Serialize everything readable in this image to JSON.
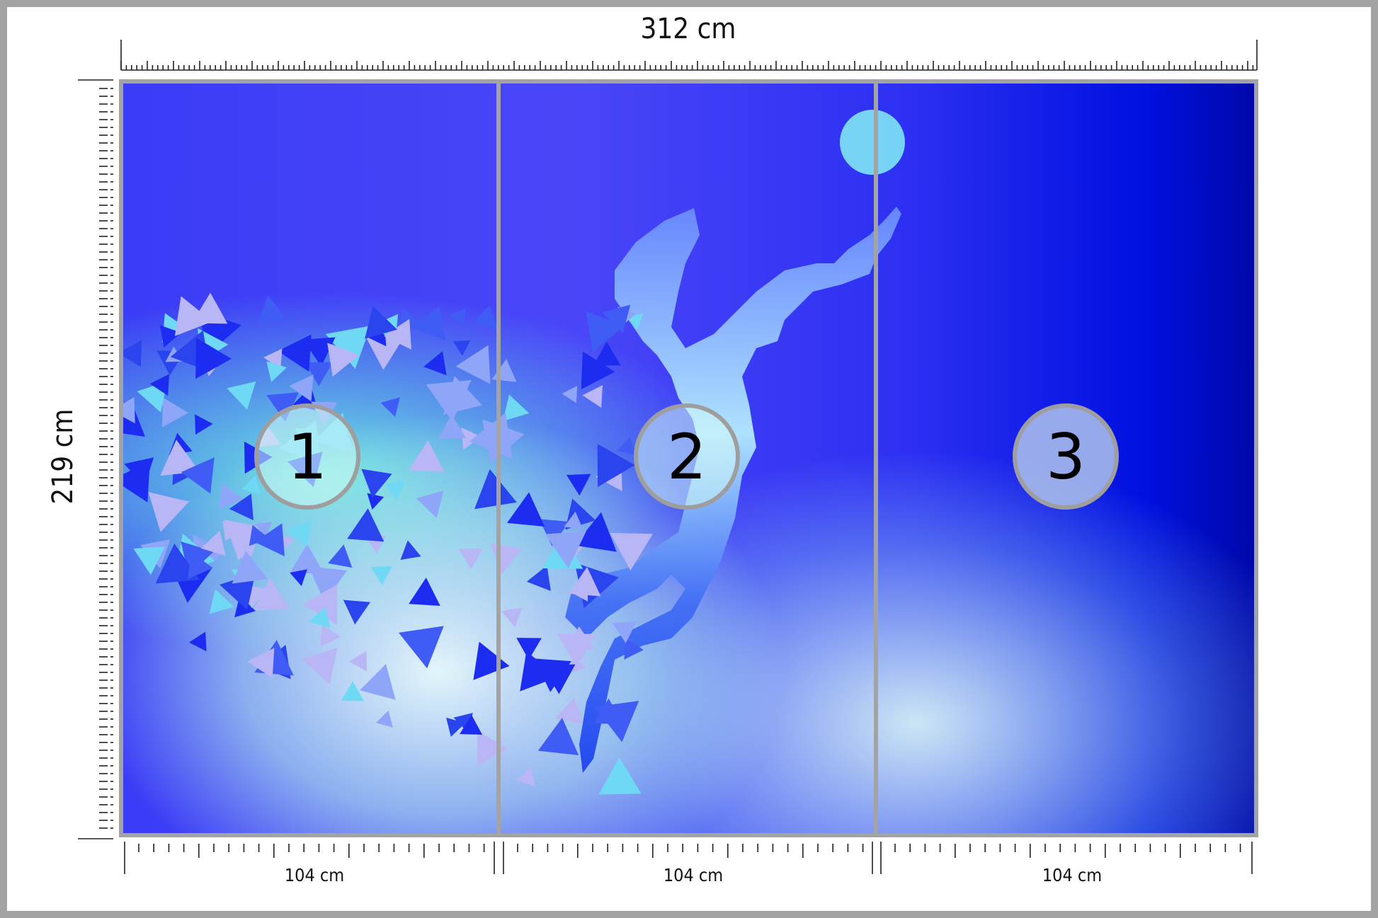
{
  "dimensions": {
    "width_label": "312 cm",
    "height_label": "219 cm"
  },
  "panels": [
    {
      "number": "1",
      "width_label": "104 cm"
    },
    {
      "number": "2",
      "width_label": "104 cm"
    },
    {
      "number": "3",
      "width_label": "104 cm"
    }
  ],
  "colors": {
    "frame": "#a3a3a3",
    "background_blue": "#3a3cf6",
    "glow": "#7ff5e0"
  }
}
